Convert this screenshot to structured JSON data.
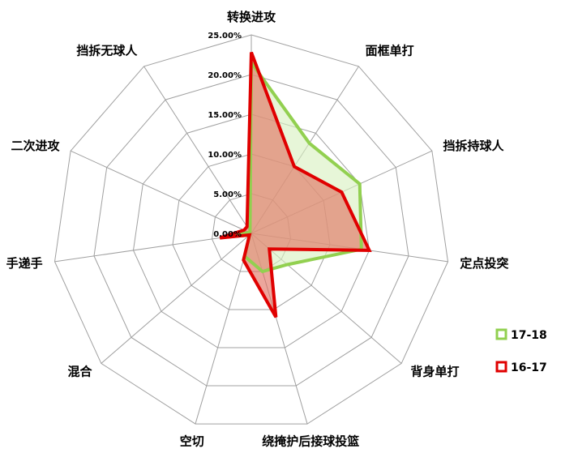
{
  "chart_data": {
    "type": "radar",
    "categories": [
      "转换进攻",
      "面框单打",
      "挡拆持球人",
      "定点投突",
      "背身单打",
      "绕掩护后接球投篮",
      "空切",
      "混合",
      "手递手",
      "二次进攻",
      "挡拆无球人"
    ],
    "ticks": [
      "0.00%",
      "5.00%",
      "10.00%",
      "15.00%",
      "20.00%",
      "25.00%"
    ],
    "rmax": 25,
    "series": [
      {
        "name": "17-18",
        "values": [
          21.5,
          13.5,
          15.0,
          14.0,
          6.0,
          5.0,
          3.0,
          0.3,
          3.5,
          0.3,
          0.3
        ],
        "stroke": "#92D050",
        "fill": "#D8F0C0"
      },
      {
        "name": "16-17",
        "values": [
          22.8,
          10.0,
          12.5,
          15.0,
          3.0,
          11.0,
          3.5,
          0.3,
          4.0,
          1.0,
          1.0
        ],
        "stroke": "#E00000",
        "fill": "#E07060"
      }
    ],
    "legend_position": "right"
  }
}
